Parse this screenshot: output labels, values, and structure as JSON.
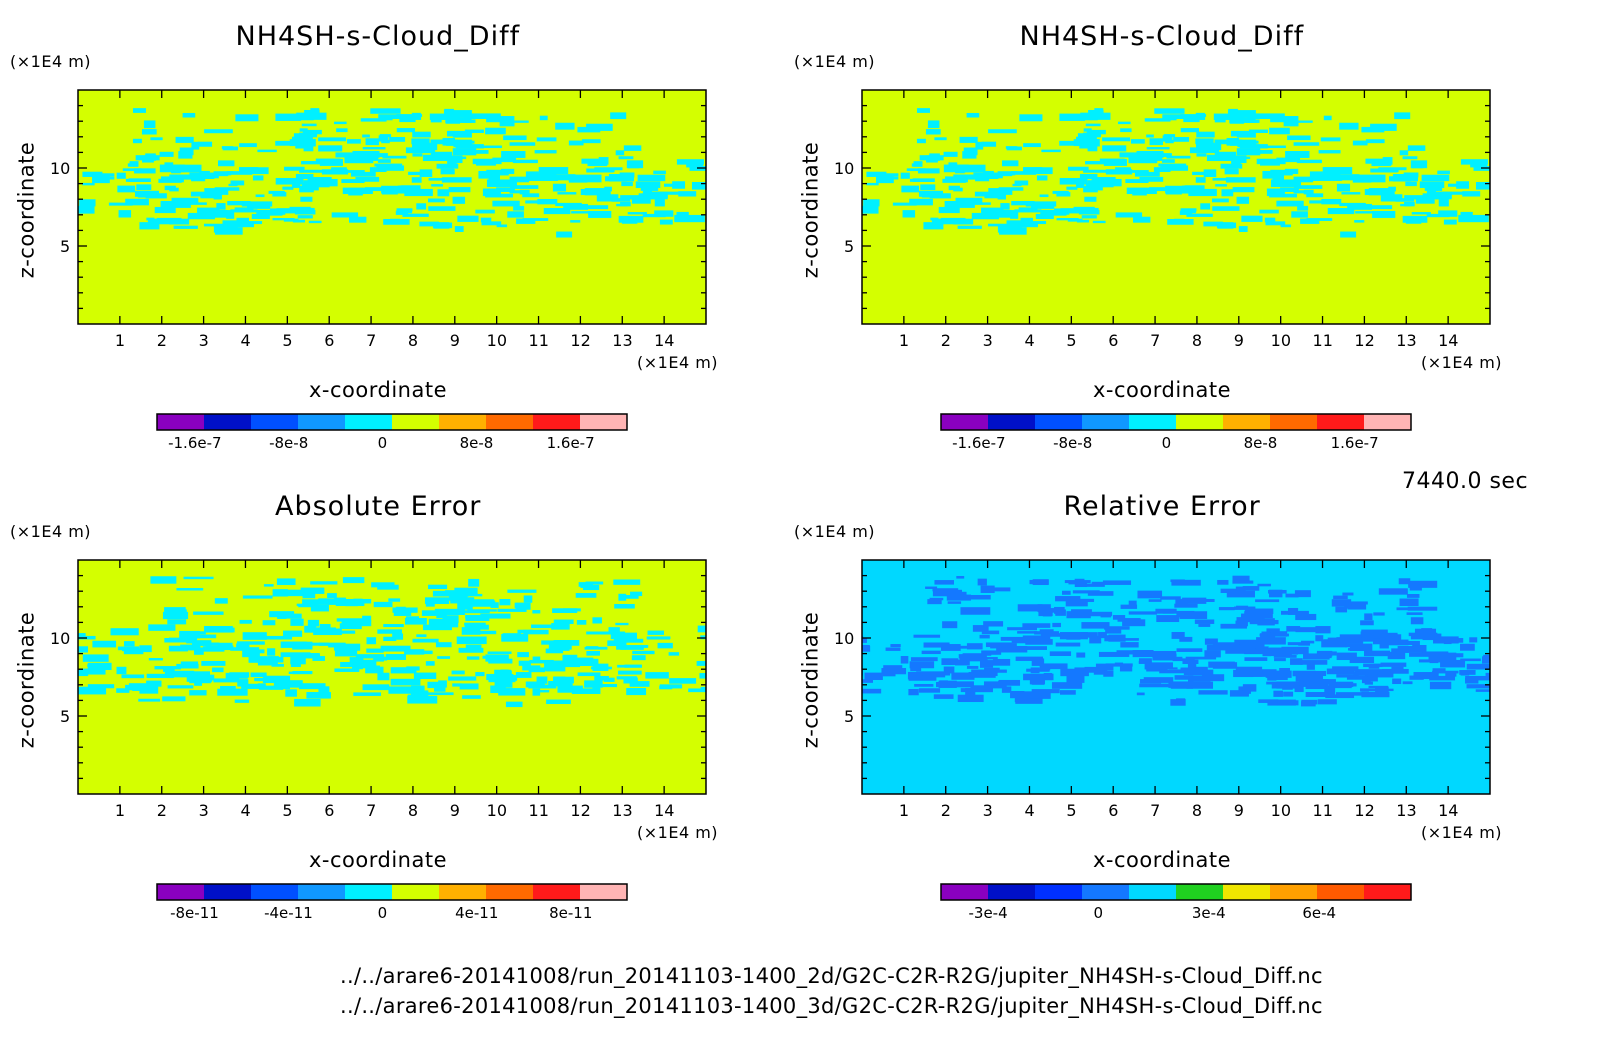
{
  "time_label": "7440.0 sec",
  "file_paths": [
    "../../arare6-20141008/run_20141103-1400_2d/G2C-C2R-R2G/jupiter_NH4SH-s-Cloud_Diff.nc",
    "../../arare6-20141008/run_20141103-1400_3d/G2C-C2R-R2G/jupiter_NH4SH-s-Cloud_Diff.nc"
  ],
  "chart_data": [
    {
      "type": "heatmap",
      "title": "NH4SH-s-Cloud_Diff",
      "xlabel": "x-coordinate",
      "ylabel": "z-coordinate",
      "x_unit": "(×1E4 m)",
      "y_unit": "(×1E4 m)",
      "xlim": [
        0,
        15
      ],
      "ylim": [
        0,
        15
      ],
      "x_ticks": [
        "1",
        "2",
        "3",
        "4",
        "5",
        "6",
        "7",
        "8",
        "9",
        "10",
        "11",
        "12",
        "13",
        "14"
      ],
      "y_ticks": [
        "5",
        "10"
      ],
      "background_color": "#d4ff00",
      "pattern_color": "#00f0ff",
      "colorbar": {
        "colors": [
          "#8a00c0",
          "#0010c8",
          "#0050ff",
          "#1098ff",
          "#00f0ff",
          "#d4ff00",
          "#ffb000",
          "#ff6a00",
          "#ff1a1a",
          "#ffb4b4"
        ],
        "labels": [
          "-1.6e-7",
          "-8e-8",
          "0",
          "8e-8",
          "1.6e-7"
        ]
      }
    },
    {
      "type": "heatmap",
      "title": "NH4SH-s-Cloud_Diff",
      "xlabel": "x-coordinate",
      "ylabel": "z-coordinate",
      "x_unit": "(×1E4 m)",
      "y_unit": "(×1E4 m)",
      "xlim": [
        0,
        15
      ],
      "ylim": [
        0,
        15
      ],
      "x_ticks": [
        "1",
        "2",
        "3",
        "4",
        "5",
        "6",
        "7",
        "8",
        "9",
        "10",
        "11",
        "12",
        "13",
        "14"
      ],
      "y_ticks": [
        "5",
        "10"
      ],
      "background_color": "#d4ff00",
      "pattern_color": "#00f0ff",
      "colorbar": {
        "colors": [
          "#8a00c0",
          "#0010c8",
          "#0050ff",
          "#1098ff",
          "#00f0ff",
          "#d4ff00",
          "#ffb000",
          "#ff6a00",
          "#ff1a1a",
          "#ffb4b4"
        ],
        "labels": [
          "-1.6e-7",
          "-8e-8",
          "0",
          "8e-8",
          "1.6e-7"
        ]
      }
    },
    {
      "type": "heatmap",
      "title": "Absolute Error",
      "xlabel": "x-coordinate",
      "ylabel": "z-coordinate",
      "x_unit": "(×1E4 m)",
      "y_unit": "(×1E4 m)",
      "xlim": [
        0,
        15
      ],
      "ylim": [
        0,
        15
      ],
      "x_ticks": [
        "1",
        "2",
        "3",
        "4",
        "5",
        "6",
        "7",
        "8",
        "9",
        "10",
        "11",
        "12",
        "13",
        "14"
      ],
      "y_ticks": [
        "5",
        "10"
      ],
      "background_color": "#d4ff00",
      "pattern_color": "#00f0ff",
      "colorbar": {
        "colors": [
          "#8a00c0",
          "#0010c8",
          "#0050ff",
          "#1098ff",
          "#00f0ff",
          "#d4ff00",
          "#ffb000",
          "#ff6a00",
          "#ff1a1a",
          "#ffb4b4"
        ],
        "labels": [
          "-8e-11",
          "-4e-11",
          "0",
          "4e-11",
          "8e-11"
        ]
      }
    },
    {
      "type": "heatmap",
      "title": "Relative Error",
      "xlabel": "x-coordinate",
      "ylabel": "z-coordinate",
      "x_unit": "(×1E4 m)",
      "y_unit": "(×1E4 m)",
      "xlim": [
        0,
        15
      ],
      "ylim": [
        0,
        15
      ],
      "x_ticks": [
        "1",
        "2",
        "3",
        "4",
        "5",
        "6",
        "7",
        "8",
        "9",
        "10",
        "11",
        "12",
        "13",
        "14"
      ],
      "y_ticks": [
        "5",
        "10"
      ],
      "background_color": "#00d8ff",
      "pattern_color": "#1478ff",
      "colorbar": {
        "colors": [
          "#8a00c0",
          "#0010c8",
          "#0030ff",
          "#1478ff",
          "#00d8ff",
          "#20d020",
          "#f0e600",
          "#ffa000",
          "#ff5a00",
          "#ff1a1a"
        ],
        "labels": [
          "-3e-4",
          "0",
          "3e-4",
          "6e-4"
        ]
      }
    }
  ]
}
